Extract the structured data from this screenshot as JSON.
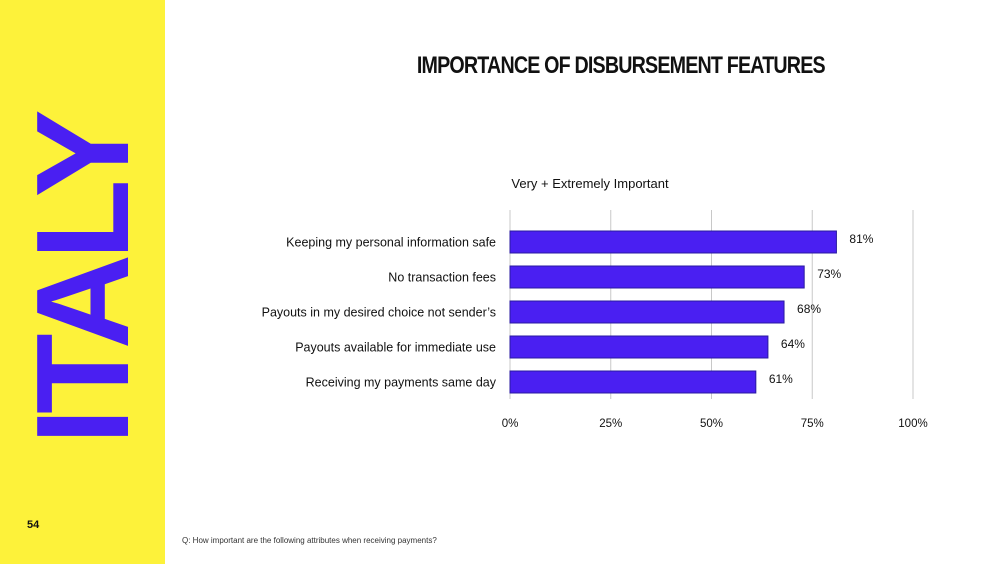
{
  "country": "ITALY",
  "page_number": "54",
  "footnote": "Q: How important are the following attributes when receiving payments?",
  "colors": {
    "sidebar": "#fdf23a",
    "accent": "#4a1ff2",
    "bar_fill": "#4a1ff2",
    "bar_stroke": "#2a1aa0",
    "grid": "#c8c8c8"
  },
  "chart_data": {
    "type": "bar",
    "orientation": "horizontal",
    "title": "IMPORTANCE OF DISBURSEMENT FEATURES",
    "subtitle": "Very + Extremely Important",
    "categories": [
      "Keeping my personal information safe",
      "No transaction fees",
      "Payouts in my desired choice not sender’s",
      "Payouts available for immediate use",
      "Receiving my payments same day"
    ],
    "values": [
      81,
      73,
      68,
      64,
      61
    ],
    "value_labels": [
      "81%",
      "73%",
      "68%",
      "64%",
      "61%"
    ],
    "xlim": [
      0,
      100
    ],
    "ticks": [
      0,
      25,
      50,
      75,
      100
    ],
    "tick_labels": [
      "0%",
      "25%",
      "50%",
      "75%",
      "100%"
    ],
    "grid": true,
    "legend": "none"
  }
}
